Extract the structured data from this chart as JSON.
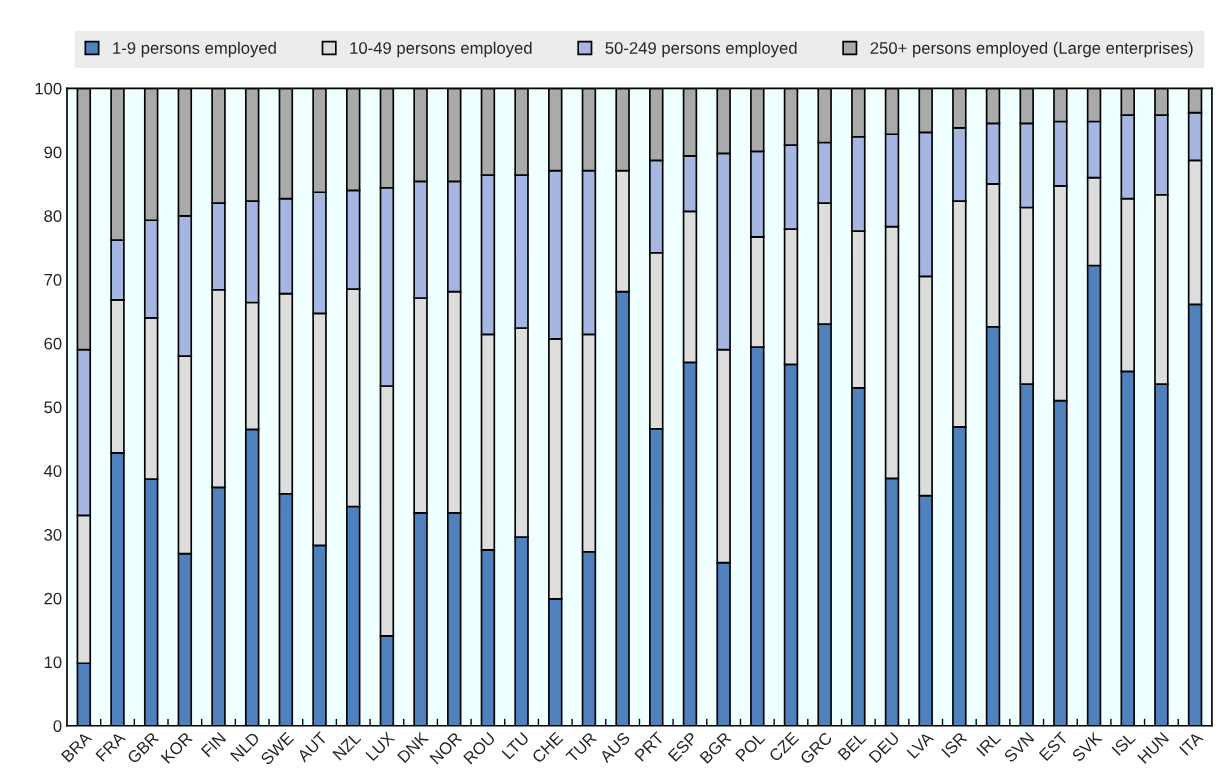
{
  "chart_data": {
    "type": "bar",
    "stacked": true,
    "categories": [
      "BRA",
      "FRA",
      "GBR",
      "KOR",
      "FIN",
      "NLD",
      "SWE",
      "AUT",
      "NZL",
      "LUX",
      "DNK",
      "NOR",
      "ROU",
      "LTU",
      "CHE",
      "TUR",
      "AUS",
      "PRT",
      "ESP",
      "BGR",
      "POL",
      "CZE",
      "GRC",
      "BEL",
      "DEU",
      "LVA",
      "ISR",
      "IRL",
      "SVN",
      "EST",
      "SVK",
      "ISL",
      "HUN",
      "ITA"
    ],
    "series": [
      {
        "name": "1-9 persons employed",
        "color": "#4f81bd",
        "values": [
          9.8,
          42.8,
          38.7,
          27,
          37.4,
          46.5,
          36.4,
          28.3,
          34.4,
          14.1,
          33.4,
          33.4,
          27.6,
          29.6,
          19.9,
          27.3,
          68.1,
          46.6,
          57,
          25.6,
          59.4,
          56.7,
          63,
          53,
          38.8,
          36.1,
          46.9,
          62.6,
          53.6,
          51,
          72.2,
          55.6,
          53.6,
          66.1
        ]
      },
      {
        "name": "10-49 persons employed",
        "color": "#dddddd",
        "values": [
          23.2,
          24,
          25.3,
          31,
          31,
          19.9,
          31.4,
          36.4,
          34.1,
          39.2,
          33.7,
          34.7,
          33.8,
          32.8,
          40.8,
          34.1,
          19,
          27.6,
          23.7,
          33.4,
          17.3,
          21.2,
          19,
          24.6,
          39.5,
          34.4,
          35.4,
          22.4,
          27.7,
          33.7,
          13.8,
          27.1,
          29.7,
          22.6
        ]
      },
      {
        "name": "50-249 persons employed",
        "color": "#a6b6e2",
        "values": [
          26,
          9.4,
          15.3,
          22,
          13.6,
          15.9,
          14.9,
          19,
          15.5,
          31.1,
          18.3,
          17.3,
          25,
          24,
          26.4,
          25.7,
          null,
          14.5,
          8.7,
          30.8,
          13.4,
          13.2,
          9.5,
          14.8,
          14.5,
          22.6,
          11.5,
          9.5,
          13.2,
          10.1,
          8.8,
          13.1,
          12.5,
          7.5
        ]
      },
      {
        "name": "250+ persons employed (Large enterprises)",
        "color": "#aaaaaa",
        "values": [
          41,
          23.8,
          20.7,
          20,
          18,
          17.7,
          17.3,
          16.3,
          16,
          15.6,
          14.6,
          14.6,
          13.6,
          13.6,
          12.9,
          12.9,
          12.9,
          11.3,
          10.6,
          10.2,
          9.9,
          8.9,
          8.5,
          7.6,
          7.2,
          6.9,
          6.2,
          5.5,
          5.5,
          5.2,
          5.2,
          4.2,
          4.2,
          3.8
        ]
      }
    ],
    "ylim": [
      0,
      100
    ],
    "yticks": [
      0,
      10,
      20,
      30,
      40,
      50,
      60,
      70,
      80,
      90,
      100
    ],
    "grid": false,
    "legend": "top"
  }
}
